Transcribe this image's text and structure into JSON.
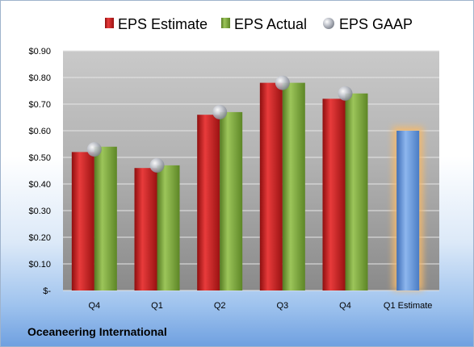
{
  "company": "Oceaneering International",
  "chart_data": {
    "type": "bar",
    "categories": [
      "Q4",
      "Q1",
      "Q2",
      "Q3",
      "Q4",
      "Q1 Estimate"
    ],
    "series": [
      {
        "name": "EPS Estimate",
        "values": [
          0.52,
          0.46,
          0.66,
          0.78,
          0.72,
          null
        ],
        "color": "#c41e1e"
      },
      {
        "name": "EPS Actual",
        "values": [
          0.54,
          0.47,
          0.67,
          0.78,
          0.74,
          null
        ],
        "color": "#7aa33a"
      },
      {
        "name": "EPS GAAP",
        "values": [
          0.53,
          0.47,
          0.67,
          0.78,
          0.74,
          null
        ],
        "color": "#b9bcc4",
        "marker": "sphere"
      }
    ],
    "forecast": {
      "category": "Q1 Estimate",
      "value": 0.6,
      "color": "#5b8fd8",
      "glow": "#f5b96a"
    },
    "yticks": [
      "$0.90",
      "$0.80",
      "$0.70",
      "$0.60",
      "$0.50",
      "$0.40",
      "$0.30",
      "$0.20",
      "$0.10",
      "$-"
    ],
    "ylim": [
      0,
      0.9
    ],
    "grid": true,
    "legend_position": "top",
    "title": "",
    "xlabel": "",
    "ylabel": ""
  }
}
